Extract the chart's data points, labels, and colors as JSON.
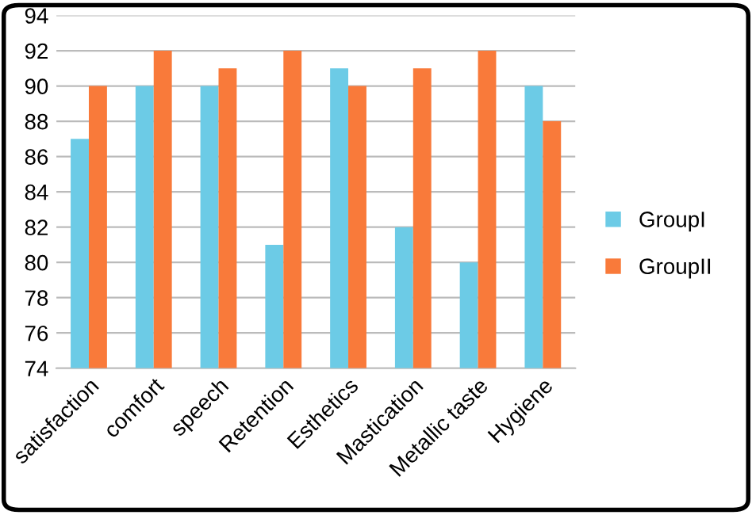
{
  "chart_data": {
    "type": "bar",
    "categories": [
      "satisfaction",
      "comfort",
      "speech",
      "Retention",
      "Esthetics",
      "Mastication",
      "Metallic taste",
      "Hygiene"
    ],
    "series": [
      {
        "name": "GroupI",
        "color": "#6ccbe6",
        "values": [
          87,
          90,
          90,
          81,
          91,
          82,
          80,
          90
        ]
      },
      {
        "name": "GroupII",
        "color": "#f97a3a",
        "values": [
          90,
          92,
          91,
          92,
          90,
          91,
          92,
          88
        ]
      }
    ],
    "ylim": [
      74,
      94
    ],
    "yticks": [
      74,
      76,
      78,
      80,
      82,
      84,
      86,
      88,
      90,
      92,
      94
    ],
    "grid": "y",
    "legend": "right"
  }
}
